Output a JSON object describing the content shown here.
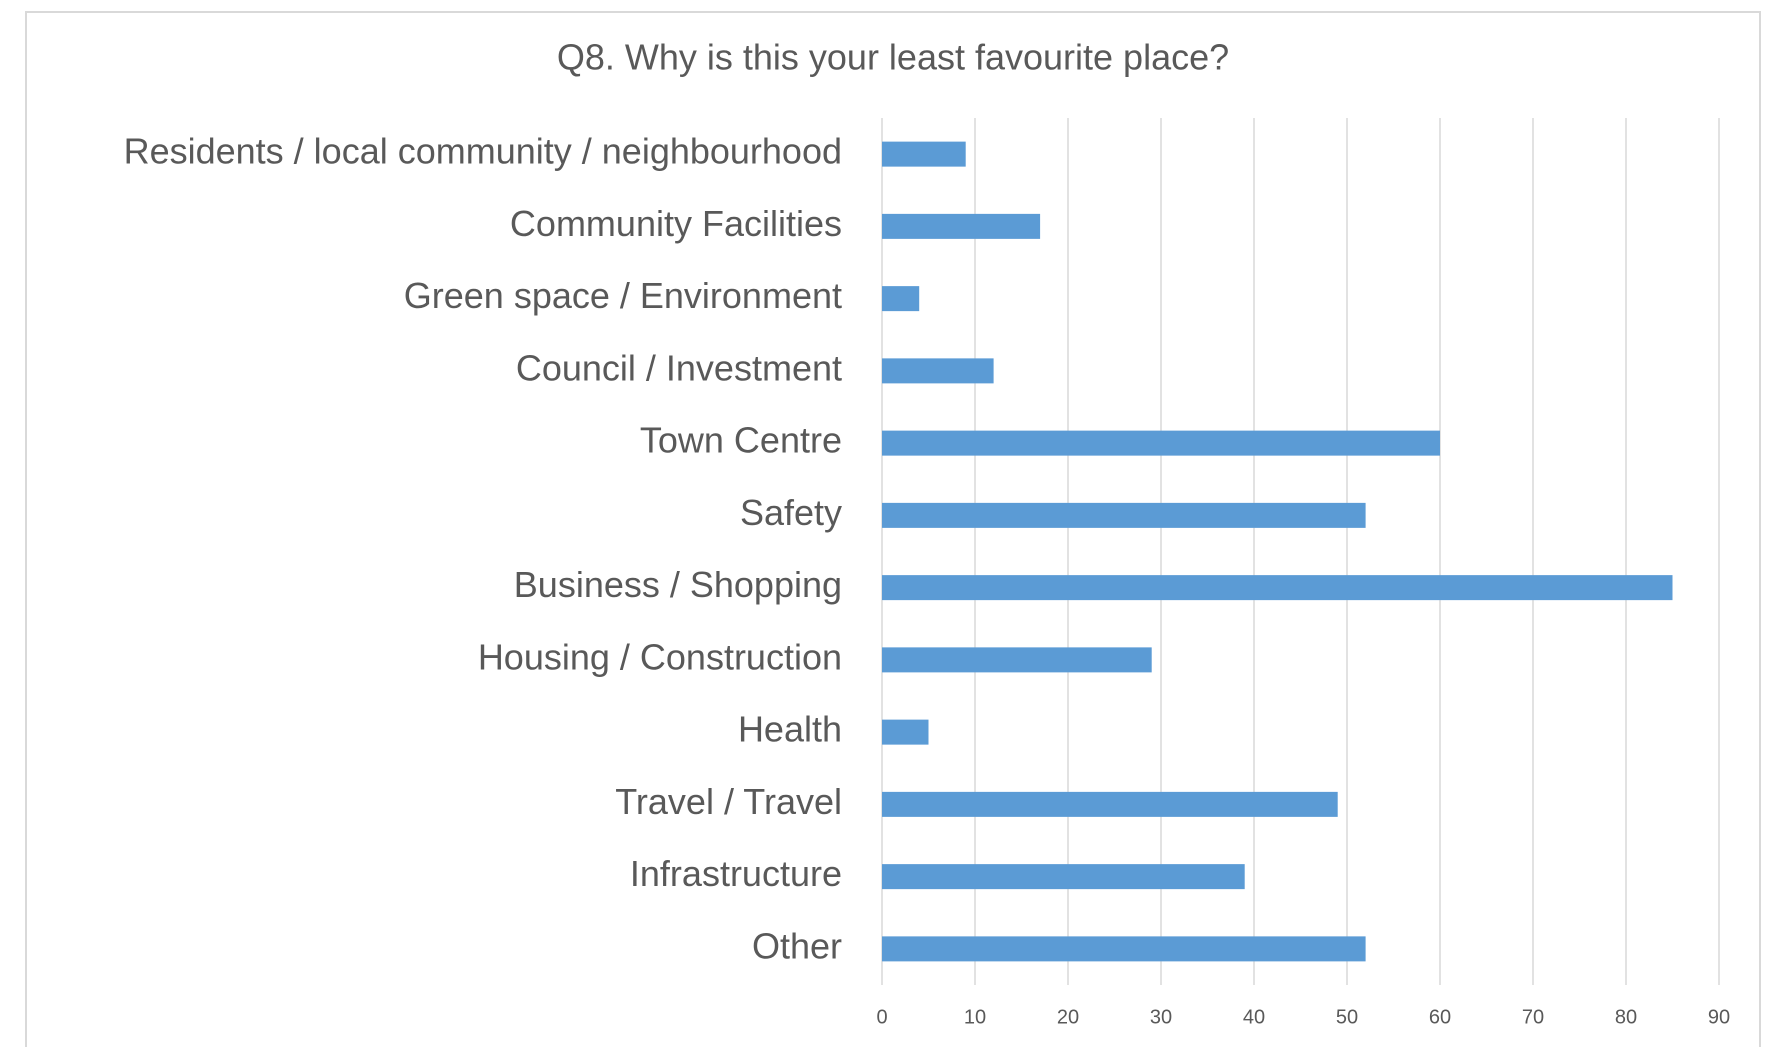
{
  "chart_data": {
    "type": "hbar",
    "title": "Q8. Why is this your least favourite place?",
    "categories": [
      "Residents / local community / neighbourhood",
      "Community Facilities",
      "Green space / Environment",
      "Council / Investment",
      "Town Centre",
      "Safety",
      "Business / Shopping",
      "Housing / Construction",
      "Health",
      "Travel / Travel",
      "Infrastructure",
      "Other"
    ],
    "values": [
      9,
      17,
      4,
      12,
      60,
      52,
      85,
      29,
      5,
      49,
      39,
      52
    ],
    "color": "#5b9bd5",
    "xlim": [
      0,
      90
    ],
    "xticks": [
      0,
      10,
      20,
      30,
      40,
      50,
      60,
      70,
      80,
      90
    ],
    "grid": true
  }
}
